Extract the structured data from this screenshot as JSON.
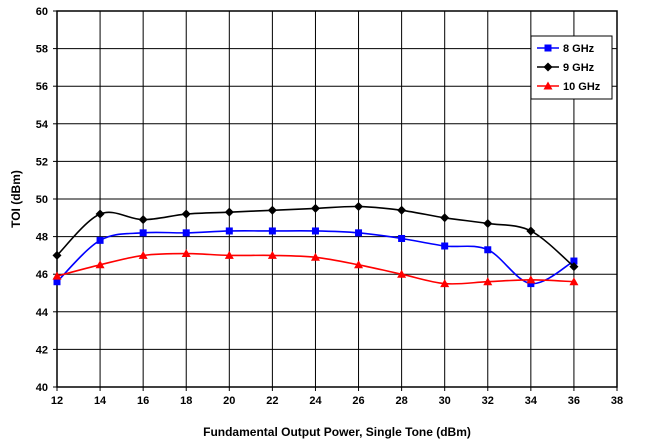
{
  "chart_data": {
    "type": "line",
    "xlabel": "Fundamental Output Power, Single Tone (dBm)",
    "ylabel": "TOI (dBm)",
    "xlim": [
      12,
      38
    ],
    "ylim": [
      40,
      60
    ],
    "xticks": [
      12,
      14,
      16,
      18,
      20,
      22,
      24,
      26,
      28,
      30,
      32,
      34,
      36,
      38
    ],
    "yticks": [
      40,
      42,
      44,
      46,
      48,
      50,
      52,
      54,
      56,
      58,
      60
    ],
    "grid": true,
    "legend_position": "top-right",
    "series": [
      {
        "name": "8 GHz",
        "color": "#0000ff",
        "marker": "square",
        "x": [
          12,
          14,
          16,
          18,
          20,
          22,
          24,
          26,
          28,
          30,
          32,
          34,
          36
        ],
        "y": [
          45.6,
          47.8,
          48.2,
          48.2,
          48.3,
          48.3,
          48.3,
          48.2,
          47.9,
          47.5,
          47.3,
          45.5,
          46.7
        ]
      },
      {
        "name": "9 GHz",
        "color": "#000000",
        "marker": "diamond",
        "x": [
          12,
          14,
          16,
          18,
          20,
          22,
          24,
          26,
          28,
          30,
          32,
          34,
          36
        ],
        "y": [
          47.0,
          49.2,
          48.9,
          49.2,
          49.3,
          49.4,
          49.5,
          49.6,
          49.4,
          49.0,
          48.7,
          48.3,
          46.4
        ]
      },
      {
        "name": "10 GHz",
        "color": "#ff0000",
        "marker": "triangle",
        "x": [
          12,
          14,
          16,
          18,
          20,
          22,
          24,
          26,
          28,
          30,
          32,
          34,
          36
        ],
        "y": [
          45.9,
          46.5,
          47.0,
          47.1,
          47.0,
          47.0,
          46.9,
          46.5,
          46.0,
          45.5,
          45.6,
          45.7,
          45.6
        ]
      }
    ]
  }
}
